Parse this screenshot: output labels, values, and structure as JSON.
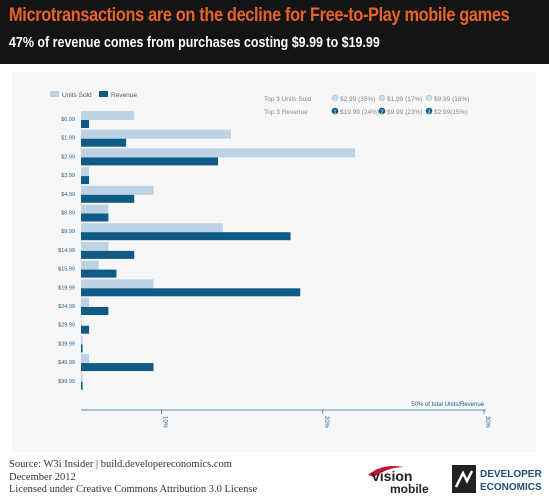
{
  "header": {
    "title": "Microtransactions are on the decline  for Free-to-Play mobile games",
    "subtitle": "47% of revenue comes from purchases costing $9.99 to $19.99"
  },
  "chart_data": {
    "type": "bar",
    "orientation": "horizontal",
    "categories": [
      "$0.99",
      "$1.99",
      "$2.99",
      "$3.99",
      "$4.99",
      "$6.99",
      "$9.99",
      "$14.99",
      "$15.99",
      "$19.99",
      "$24.99",
      "$29.99",
      "$39.99",
      "$49.99",
      "$99.99"
    ],
    "series": [
      {
        "name": "Units Sold",
        "color": "#bcd3e6",
        "values": [
          3.3,
          9.3,
          17.0,
          0.5,
          4.5,
          1.7,
          8.8,
          1.7,
          1.1,
          4.5,
          0.5,
          0.0,
          0.1,
          0.5,
          0.1
        ]
      },
      {
        "name": "Revenue",
        "color": "#0f5b86",
        "values": [
          0.5,
          2.8,
          8.5,
          0.5,
          3.3,
          1.7,
          13.0,
          3.3,
          2.2,
          13.6,
          1.7,
          0.5,
          0.1,
          4.5,
          0.1
        ]
      }
    ],
    "xlim": [
      0,
      25
    ],
    "x_ticks": [
      "10%",
      "20%",
      "30%"
    ],
    "axis_label": "50% of total Units/Revenue",
    "legend_position": "top-left",
    "top3": {
      "units_label": "Top 3 Units Sold",
      "units": [
        {
          "rank": "1",
          "text": "$2.99 (35%)"
        },
        {
          "rank": "2",
          "text": "$1.99 (17%)"
        },
        {
          "rank": "3",
          "text": "$9.99 (16%)"
        }
      ],
      "revenue_label": "Top 3 Revenue",
      "revenue": [
        {
          "rank": "1",
          "text": "$19.99 (24%)"
        },
        {
          "rank": "2",
          "text": "$9.99 (23%)"
        },
        {
          "rank": "3",
          "text": "$2.99(15%)"
        }
      ]
    }
  },
  "footer": {
    "source": "Source: W3i Insider | build.developereconomics.com",
    "date": "December 2012",
    "license": "Licensed under Creative Commons Attribution 3.0 License"
  },
  "logos": {
    "vision_top": "vision",
    "vision_bottom": "mobile",
    "dev_top": "DEVELOPER",
    "dev_bottom": "ECONOMICS"
  },
  "colors": {
    "header_bg": "#141414",
    "title": "#e8632c",
    "units": "#bcd3e6",
    "revenue": "#0f5b86"
  }
}
